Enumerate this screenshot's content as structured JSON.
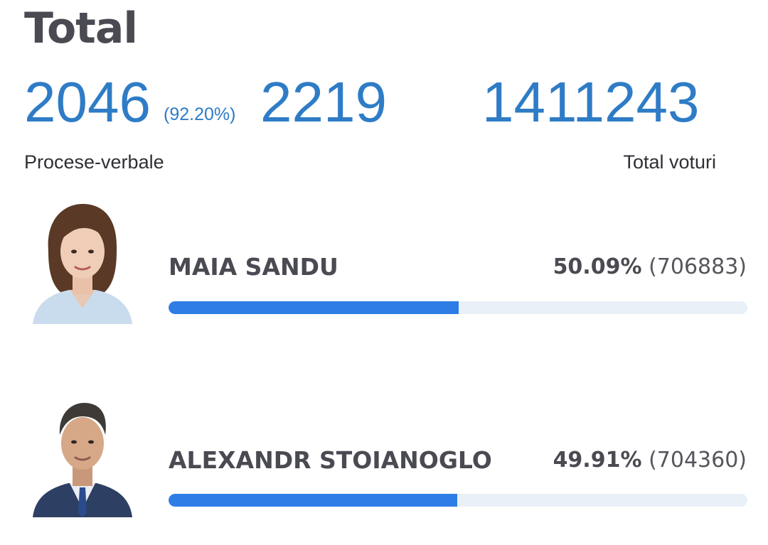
{
  "header": {
    "title": "Total"
  },
  "summary": {
    "processed": "2046",
    "processed_pct": "(92.20%)",
    "total_stations": "2219",
    "total_votes": "1411243",
    "processed_label": "Procese-verbale",
    "total_votes_label": "Total voturi"
  },
  "candidates": [
    {
      "name": "MAIA SANDU",
      "percent_label": "50.09%",
      "votes_label": "(706883)",
      "share": 50.09,
      "photo": "woman-portrait-icon"
    },
    {
      "name": "ALEXANDR STOIANOGLO",
      "percent_label": "49.91%",
      "votes_label": "(704360)",
      "share": 49.91,
      "photo": "man-portrait-icon"
    }
  ],
  "colors": {
    "accent_number": "#2f7cc6",
    "bar_fill": "#2e7de6",
    "bar_track": "#eaf0f7",
    "text_dark": "#4a4a52"
  }
}
